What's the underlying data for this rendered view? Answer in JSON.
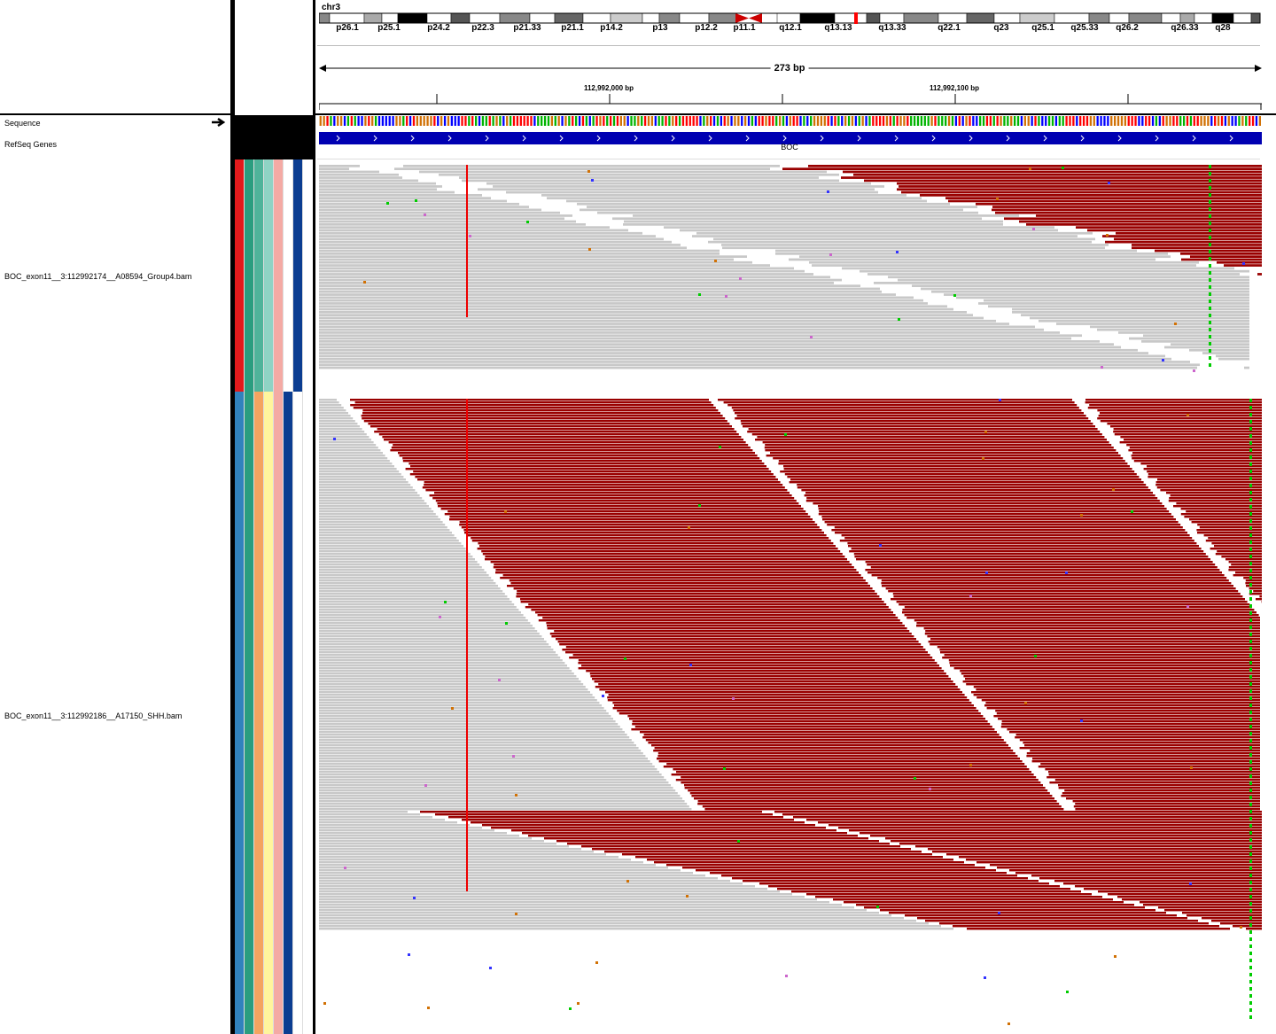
{
  "header": {
    "chromosome": "chr3",
    "cytobands": [
      "p26.1",
      "p25.1",
      "p24.2",
      "p22.3",
      "p21.33",
      "p21.1",
      "p14.2",
      "p13",
      "p12.2",
      "p11.1",
      "q12.1",
      "q13.13",
      "q13.33",
      "q22.1",
      "q23",
      "q25.1",
      "q25.33",
      "q26.2",
      "q26.33",
      "q28"
    ],
    "span": "273 bp",
    "ticks": [
      "112,992,000 bp",
      "112,992,100 bp"
    ]
  },
  "tracks": {
    "sequence": "Sequence",
    "refseq": "RefSeq Genes",
    "gene": "BOC",
    "bam1": "BOC_exon11__3:112992174__A08594_Group4.bam",
    "bam2": "BOC_exon11__3:112992186__A17150_SHH.bam"
  },
  "colors": {
    "read_forward": "#c8c8c8",
    "read_reverse": "#990000",
    "mismatch_g": "#00cc00",
    "indel": "#ee0000",
    "gene": "#0000b2"
  },
  "attributes": {
    "bam1": [
      "#e31a1c",
      "#2a9d7f",
      "#4fb39a",
      "#8fd3c4",
      "#f4aaa4",
      "#ffffff",
      "#0b3d91"
    ],
    "bam2": [
      "#3182bd",
      "#2a9d7f",
      "#f4a460",
      "#fff59d",
      "#f4aaa4",
      "#0b3d91",
      "#ffffff"
    ]
  }
}
